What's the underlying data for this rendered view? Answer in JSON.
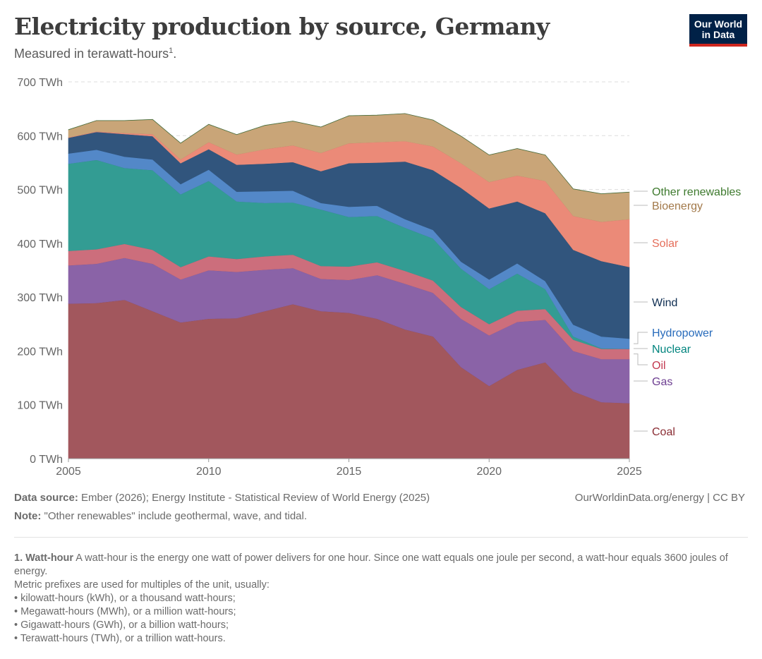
{
  "header": {
    "title": "Electricity production by source, Germany",
    "subtitle": "Measured in terawatt-hours",
    "subtitle_sup": "1",
    "subtitle_end": ".",
    "logo_line1": "Our World",
    "logo_line2": "in Data"
  },
  "chart_data": {
    "type": "area",
    "stacked": true,
    "title": "Electricity production by source, Germany",
    "subtitle": "Measured in terawatt-hours.",
    "xlabel": "",
    "ylabel": "",
    "unit": "TWh",
    "x": [
      2005,
      2006,
      2007,
      2008,
      2009,
      2010,
      2011,
      2012,
      2013,
      2014,
      2015,
      2016,
      2017,
      2018,
      2019,
      2020,
      2021,
      2022,
      2023,
      2024,
      2025
    ],
    "xlim": [
      2005,
      2025
    ],
    "ylim": [
      0,
      700
    ],
    "x_ticks": [
      "2005",
      "2010",
      "2015",
      "2020",
      "2025"
    ],
    "x_tick_values": [
      2005,
      2010,
      2015,
      2020,
      2025
    ],
    "y_ticks": [
      "0 TWh",
      "100 TWh",
      "200 TWh",
      "300 TWh",
      "400 TWh",
      "500 TWh",
      "600 TWh",
      "700 TWh"
    ],
    "y_tick_values": [
      0,
      100,
      200,
      300,
      400,
      500,
      600,
      700
    ],
    "grid": true,
    "legend": "right, inline labels",
    "series": [
      {
        "name": "Coal",
        "color": "#a2575d",
        "label_color": "#8a2c33",
        "values": [
          288,
          289,
          295,
          274,
          253,
          260,
          261,
          274,
          287,
          274,
          271,
          260,
          240,
          227,
          170,
          135,
          165,
          179,
          125,
          105,
          103
        ]
      },
      {
        "name": "Gas",
        "color": "#8a63a7",
        "label_color": "#6d3e91",
        "values": [
          71,
          73,
          78,
          88,
          80,
          90,
          86,
          77,
          67,
          60,
          61,
          81,
          85,
          81,
          90,
          94,
          89,
          79,
          75,
          80,
          82
        ]
      },
      {
        "name": "Oil",
        "color": "#cc6e7c",
        "label_color": "#c2384f",
        "values": [
          27,
          27,
          26,
          26,
          23,
          26,
          24,
          25,
          25,
          24,
          25,
          24,
          24,
          23,
          22,
          21,
          21,
          20,
          21,
          19,
          19
        ]
      },
      {
        "name": "Nuclear",
        "color": "#339c93",
        "label_color": "#00847e",
        "values": [
          162,
          166,
          141,
          148,
          135,
          140,
          107,
          99,
          97,
          105,
          92,
          86,
          80,
          78,
          71,
          65,
          69,
          37,
          6,
          1,
          0
        ]
      },
      {
        "name": "Hydropower",
        "color": "#5388c8",
        "label_color": "#286bbb",
        "values": [
          19,
          19,
          21,
          20,
          19,
          21,
          18,
          22,
          22,
          12,
          19,
          19,
          16,
          16,
          13,
          18,
          19,
          15,
          22,
          22,
          19
        ]
      },
      {
        "name": "Wind",
        "color": "#31557d",
        "label_color": "#0f2e52",
        "values": [
          29,
          33,
          42,
          43,
          39,
          38,
          50,
          51,
          53,
          59,
          81,
          80,
          107,
          111,
          137,
          132,
          115,
          126,
          139,
          140,
          133
        ]
      },
      {
        "name": "Solar",
        "color": "#eb8a78",
        "label_color": "#e56e5a",
        "values": [
          1,
          1,
          2,
          4,
          7,
          13,
          19,
          27,
          31,
          34,
          37,
          38,
          38,
          44,
          46,
          49,
          48,
          60,
          63,
          73,
          89
        ]
      },
      {
        "name": "Bioenergy",
        "color": "#c9a578",
        "label_color": "#a2794a",
        "values": [
          14,
          20,
          23,
          27,
          30,
          33,
          37,
          44,
          45,
          48,
          51,
          50,
          51,
          49,
          50,
          50,
          50,
          48,
          50,
          52,
          50
        ]
      },
      {
        "name": "Other renewables",
        "color": "#5c8a4e",
        "label_color": "#3e7a2e",
        "values": [
          0.2,
          0.2,
          0.2,
          0.2,
          0.2,
          0.2,
          0.2,
          0.2,
          0.2,
          0.2,
          0.2,
          0.2,
          0.2,
          0.2,
          0.2,
          0.2,
          0.2,
          0.2,
          0.2,
          0.2,
          0.2
        ]
      }
    ]
  },
  "footer": {
    "source_label": "Data source:",
    "source_text": " Ember (2026); Energy Institute - Statistical Review of World Energy (2025)",
    "note_label": "Note:",
    "note_text": " \"Other renewables\" include geothermal, wave, and tidal.",
    "link_text": "OurWorldinData.org/energy | CC BY"
  },
  "footnote": {
    "heading": "1. Watt-hour",
    "text1": " A watt-hour is the energy one watt of power delivers for one hour. Since one watt equals one joule per second, a watt-hour equals 3600 joules of energy.",
    "text2": "Metric prefixes are used for multiples of the unit, usually:",
    "bullets": [
      "• kilowatt-hours (kWh), or a thousand watt-hours;",
      "• Megawatt-hours (MWh), or a million watt-hours;",
      "• Gigawatt-hours (GWh), or a billion watt-hours;",
      "• Terawatt-hours (TWh), or a trillion watt-hours."
    ]
  }
}
